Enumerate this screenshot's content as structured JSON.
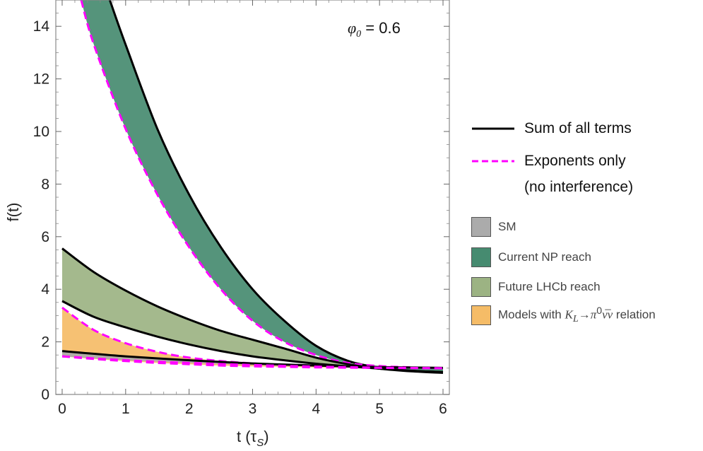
{
  "chart_data": {
    "type": "area",
    "xlabel": "t (τ",
    "xlabel_sub": "S",
    "xlabel_close": ")",
    "ylabel": "f(t)",
    "annotation": "φ",
    "annotation_sub": "0",
    "annotation_rest": " = 0.6",
    "xlim": [
      -0.1,
      6.1
    ],
    "ylim": [
      0,
      15
    ],
    "xticks": [
      0,
      1,
      2,
      3,
      4,
      5,
      6
    ],
    "yticks": [
      0,
      2,
      4,
      6,
      8,
      10,
      12,
      14
    ],
    "bands": [
      {
        "name": "Current NP reach",
        "color": "#468B70",
        "upper": {
          "x": [
            0.75,
            1,
            1.5,
            2,
            2.5,
            3,
            3.5,
            4,
            4.5,
            5,
            5.5,
            6
          ],
          "y": [
            15,
            13.3,
            10.1,
            7.6,
            5.6,
            4.0,
            2.8,
            1.85,
            1.28,
            1.02,
            0.9,
            0.85
          ]
        },
        "lower": {
          "x": [
            0.3,
            0.5,
            1,
            1.5,
            2,
            2.5,
            3,
            3.5,
            4,
            4.5,
            5,
            5.5,
            6
          ],
          "y": [
            15,
            13.3,
            10.1,
            7.6,
            5.6,
            4.0,
            2.8,
            2.0,
            1.5,
            1.2,
            1.08,
            1.03,
            1.0
          ]
        }
      },
      {
        "name": "Future LHCb reach",
        "color": "#9CB383",
        "upper": {
          "x": [
            0,
            0.5,
            1,
            1.5,
            2,
            2.5,
            3,
            3.5,
            4,
            4.5,
            5,
            5.5,
            6
          ],
          "y": [
            5.55,
            4.65,
            3.95,
            3.35,
            2.85,
            2.42,
            2.08,
            1.75,
            1.4,
            1.15,
            0.98,
            0.88,
            0.82
          ]
        },
        "lower": {
          "x": [
            0,
            0.5,
            1,
            1.5,
            2,
            2.5,
            3,
            3.5,
            4,
            4.5,
            5,
            5.5,
            6
          ],
          "y": [
            3.55,
            2.95,
            2.55,
            2.2,
            1.9,
            1.65,
            1.45,
            1.3,
            1.17,
            1.07,
            0.98,
            0.9,
            0.85
          ]
        }
      },
      {
        "name": "Models with K_L→π^0νν relation",
        "color": "#F5BC67",
        "upper": {
          "x": [
            0,
            0.5,
            1,
            1.5,
            2,
            2.5,
            3,
            3.5,
            4,
            4.5,
            5,
            5.5,
            6
          ],
          "y": [
            3.3,
            2.45,
            1.95,
            1.62,
            1.4,
            1.27,
            1.18,
            1.11,
            1.07,
            1.04,
            1.02,
            1.01,
            1.0
          ]
        },
        "lower": {
          "x": [
            0,
            0.5,
            1,
            1.5,
            2,
            2.5,
            3,
            3.5,
            4,
            4.5,
            5,
            5.5,
            6
          ],
          "y": [
            1.45,
            1.35,
            1.27,
            1.2,
            1.15,
            1.1,
            1.07,
            1.05,
            1.03,
            1.02,
            1.01,
            1.0,
            1.0
          ]
        }
      },
      {
        "name": "SM",
        "color": "#ABABAB",
        "upper": {
          "x": [
            0,
            1,
            2,
            3,
            4,
            5,
            6
          ],
          "y": [
            1.65,
            1.45,
            1.3,
            1.18,
            1.1,
            1.04,
            1.01
          ]
        },
        "lower": {
          "x": [
            0,
            1,
            2,
            3,
            4,
            5,
            6
          ],
          "y": [
            1.45,
            1.3,
            1.2,
            1.12,
            1.06,
            1.02,
            1.0
          ]
        }
      }
    ],
    "series": [
      {
        "name": "Sum of all terms",
        "style": "solid",
        "color": "#000000"
      },
      {
        "name": "Exponents only",
        "name_cont": "(no interference)",
        "style": "dashed",
        "color": "#FF00FF"
      }
    ],
    "legend_bands": [
      {
        "name": "SM",
        "color": "#ABABAB"
      },
      {
        "name": "Current NP reach",
        "color": "#468B70"
      },
      {
        "name": "Future LHCb reach",
        "color": "#9CB383"
      },
      {
        "name_pre": "Models with ",
        "name_K": "K",
        "name_Ksub": "L",
        "name_arrow": "→",
        "name_pi": "π",
        "name_pisup": "0",
        "name_nu": "ν̅",
        "name_nu2": "ν",
        "name_post": " relation",
        "color": "#F5BC67"
      }
    ],
    "legend_position": "right"
  }
}
